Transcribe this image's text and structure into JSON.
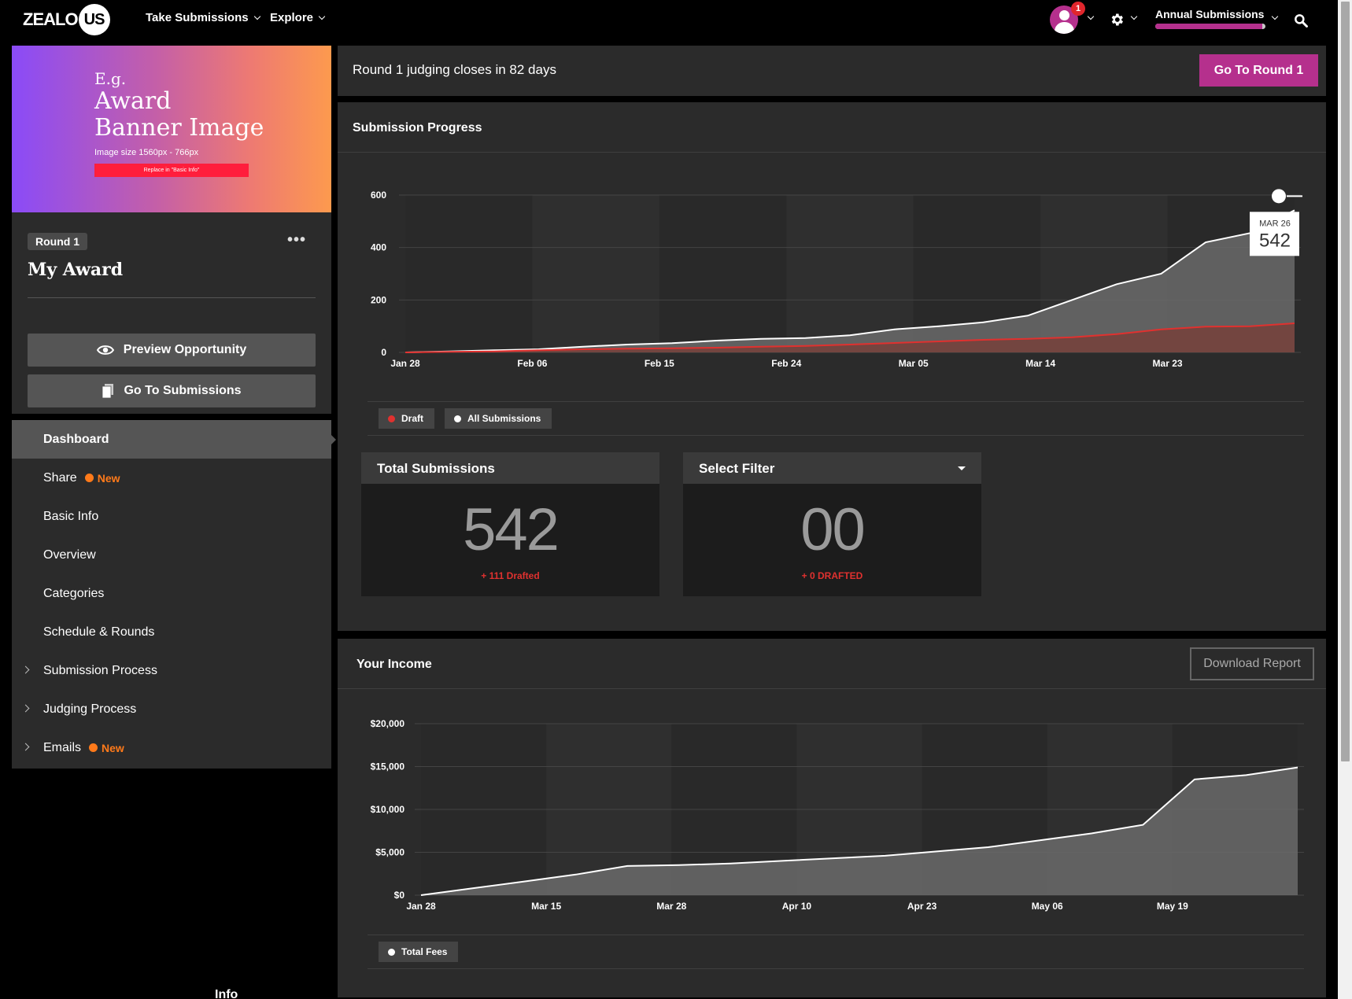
{
  "nav": {
    "logo_text": "ZEALO",
    "logo_badge": "US",
    "links": [
      "Take Submissions",
      "Explore"
    ],
    "notification_count": "1",
    "annual_label": "Annual Submissions",
    "annual_progress": 0.97
  },
  "sidebar": {
    "banner": {
      "eg": "E.g.",
      "title_line1": "Award",
      "title_line2": "Banner Image",
      "size": "Image size 1560px - 766px",
      "replace": "Replace in \"Basic Info\""
    },
    "round_label": "Round 1",
    "more": "•••",
    "award_name": "My Award",
    "preview_btn": "Preview Opportunity",
    "submissions_btn": "Go To Submissions",
    "menu": [
      {
        "label": "Dashboard",
        "active": true,
        "chevron": false,
        "new": ""
      },
      {
        "label": "Share",
        "active": false,
        "chevron": false,
        "new": "New"
      },
      {
        "label": "Basic Info",
        "active": false,
        "chevron": false,
        "new": ""
      },
      {
        "label": "Overview",
        "active": false,
        "chevron": false,
        "new": ""
      },
      {
        "label": "Categories",
        "active": false,
        "chevron": false,
        "new": ""
      },
      {
        "label": "Schedule & Rounds",
        "active": false,
        "chevron": false,
        "new": ""
      },
      {
        "label": "Submission Process",
        "active": false,
        "chevron": true,
        "new": ""
      },
      {
        "label": "Judging Process",
        "active": false,
        "chevron": true,
        "new": ""
      },
      {
        "label": "Emails",
        "active": false,
        "chevron": true,
        "new": "New"
      }
    ],
    "info_label": "Info"
  },
  "main": {
    "judging_text": "Round 1 judging closes in 82 days",
    "round_btn": "Go To Round 1",
    "progress_title": "Submission Progress",
    "income_title": "Your Income",
    "download_btn": "Download Report"
  },
  "stats": {
    "total": {
      "label": "Total Submissions",
      "value": "542",
      "sub": "+ 111 Drafted"
    },
    "filter": {
      "label": "Select Filter",
      "value": "00",
      "sub": "+ 0 DRAFTED"
    }
  },
  "tooltip": {
    "date": "MAR 26",
    "value": "542"
  },
  "colors": {
    "accent": "#b5308d",
    "draft": "#e0312f",
    "orange": "#ff7a1a",
    "panel": "#2b2b2b"
  },
  "chart_data": [
    {
      "type": "area",
      "title": "Submission Progress",
      "x_ticks": [
        "Jan 28",
        "Feb 06",
        "Feb 15",
        "Feb 24",
        "Mar 05",
        "Mar 14",
        "Mar 23"
      ],
      "y_ticks": [
        0,
        200,
        400,
        600
      ],
      "ylim": [
        0,
        600
      ],
      "x": [
        "Jan 28",
        "Jan 31",
        "Feb 03",
        "Feb 06",
        "Feb 09",
        "Feb 12",
        "Feb 15",
        "Feb 18",
        "Feb 21",
        "Feb 24",
        "Feb 27",
        "Mar 02",
        "Mar 05",
        "Mar 08",
        "Mar 11",
        "Mar 14",
        "Mar 16",
        "Mar 18",
        "Mar 20",
        "Mar 23",
        "Mar 26"
      ],
      "series": [
        {
          "name": "All Submissions",
          "values": [
            0,
            4,
            8,
            12,
            22,
            30,
            35,
            45,
            52,
            55,
            65,
            88,
            100,
            115,
            140,
            200,
            260,
            300,
            420,
            455,
            542
          ]
        },
        {
          "name": "Draft",
          "values": [
            0,
            2,
            4,
            8,
            12,
            14,
            16,
            18,
            22,
            25,
            30,
            36,
            42,
            48,
            52,
            58,
            70,
            88,
            98,
            100,
            111
          ]
        }
      ],
      "legend": [
        "Draft",
        "All Submissions"
      ],
      "legend_placement": "bottom-left",
      "grid": true
    },
    {
      "type": "area",
      "title": "Your Income",
      "x_ticks": [
        "Jan 28",
        "Mar 15",
        "Mar 28",
        "Apr 10",
        "Apr 23",
        "May 06",
        "May 19"
      ],
      "y_ticks": [
        "$0",
        "$5,000",
        "$10,000",
        "$15,000",
        "$20,000"
      ],
      "ylim": [
        0,
        20000
      ],
      "x": [
        "Jan 28",
        "Mar 01",
        "Mar 15",
        "Mar 21",
        "Mar 28",
        "Apr 03",
        "Apr 10",
        "Apr 16",
        "Apr 23",
        "Apr 30",
        "May 06",
        "May 12",
        "May 19",
        "May 24",
        "May 27",
        "May 29",
        "Jun 01",
        "Jun 03"
      ],
      "series": [
        {
          "name": "Total Fees",
          "values": [
            0,
            800,
            1600,
            2400,
            3400,
            3500,
            3700,
            4000,
            4300,
            4600,
            5100,
            5600,
            6400,
            7200,
            8200,
            13500,
            14000,
            14900
          ]
        }
      ],
      "legend": [
        "Total Fees"
      ],
      "legend_placement": "bottom-left",
      "grid": true
    }
  ]
}
